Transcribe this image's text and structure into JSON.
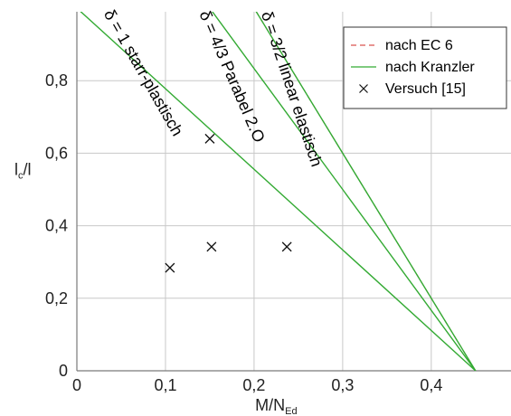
{
  "chart_data": {
    "type": "line",
    "xlabel": "M/N",
    "xlabel_sub": "Ed",
    "ylabel": "l",
    "ylabel_sub": "c",
    "ylabel_suffix": "/l",
    "xlim": [
      0,
      0.49
    ],
    "ylim": [
      0,
      0.99
    ],
    "x_ticks": [
      0,
      0.1,
      0.2,
      0.3,
      0.4
    ],
    "x_tick_labels": [
      "0",
      "0,1",
      "0,2",
      "0,3",
      "0,4"
    ],
    "y_ticks": [
      0,
      0.2,
      0.4,
      0.6,
      0.8
    ],
    "y_tick_labels": [
      "0",
      "0,2",
      "0,4",
      "0,6",
      "0,8"
    ],
    "grid": true,
    "legend_position": "top-right",
    "series": [
      {
        "name": "nach EC 6",
        "style": "dashed",
        "color": "#d9534f",
        "x": [
          0.45,
          0.2
        ],
        "y": [
          0,
          1.0
        ]
      },
      {
        "name": "nach Kranzler",
        "style": "solid",
        "color": "#33aa33",
        "x": [
          0.45,
          0.0
        ],
        "y": [
          0,
          1.0
        ]
      },
      {
        "name": "",
        "style": "solid",
        "color": "#33aa33",
        "x": [
          0.45,
          0.15
        ],
        "y": [
          0,
          1.0
        ]
      },
      {
        "name": "",
        "style": "solid",
        "color": "#33aa33",
        "x": [
          0.45,
          0.2
        ],
        "y": [
          0,
          1.0
        ]
      }
    ],
    "points": {
      "name": "Versuch [15]",
      "marker": "x",
      "x": [
        0.105,
        0.15,
        0.152,
        0.237
      ],
      "y": [
        0.284,
        0.64,
        0.342,
        0.342
      ]
    },
    "annotations": [
      {
        "text": "δ = 1 starr-plastisch",
        "x": 0.03,
        "y": 0.985,
        "rotate": -60.3
      },
      {
        "text": "δ = 4/3 Parabel 2.O",
        "x": 0.138,
        "y": 0.985,
        "rotate": -66.7
      },
      {
        "text": "δ = 3/2 linear elastisch",
        "x": 0.208,
        "y": 0.985,
        "rotate": -71.7
      }
    ]
  }
}
